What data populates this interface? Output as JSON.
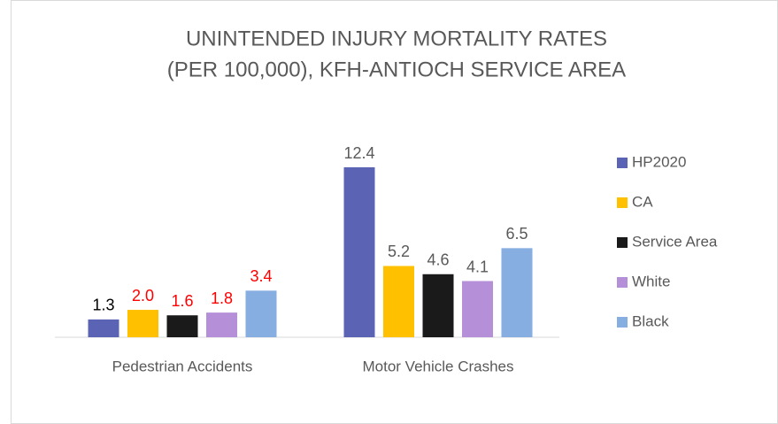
{
  "chart_data": {
    "type": "bar",
    "title_lines": [
      "UNINTENDED INJURY MORTALITY RATES",
      "(PER 100,000), KFH-ANTIOCH SERVICE AREA"
    ],
    "categories": [
      "Pedestrian Accidents",
      "Motor Vehicle Crashes"
    ],
    "series": [
      {
        "name": "HP2020",
        "color": "#5b64b4",
        "values": [
          1.3,
          12.4
        ],
        "value_labels": [
          "1.3",
          "12.4"
        ],
        "label_colors": [
          "#000000",
          "#595959"
        ]
      },
      {
        "name": "CA",
        "color": "#ffc000",
        "values": [
          2.0,
          5.2
        ],
        "value_labels": [
          "2.0",
          "5.2"
        ],
        "label_colors": [
          "#ff0000",
          "#595959"
        ]
      },
      {
        "name": "Service Area",
        "color": "#1a1a1a",
        "values": [
          1.6,
          4.6
        ],
        "value_labels": [
          "1.6",
          "4.6"
        ],
        "label_colors": [
          "#ff0000",
          "#595959"
        ]
      },
      {
        "name": "White",
        "color": "#b58fd8",
        "values": [
          1.8,
          4.1
        ],
        "value_labels": [
          "1.8",
          "4.1"
        ],
        "label_colors": [
          "#ff0000",
          "#595959"
        ]
      },
      {
        "name": "Black",
        "color": "#86aee0",
        "values": [
          3.4,
          6.5
        ],
        "value_labels": [
          "3.4",
          "6.5"
        ],
        "label_colors": [
          "#ff0000",
          "#595959"
        ]
      }
    ],
    "legend": "right"
  }
}
